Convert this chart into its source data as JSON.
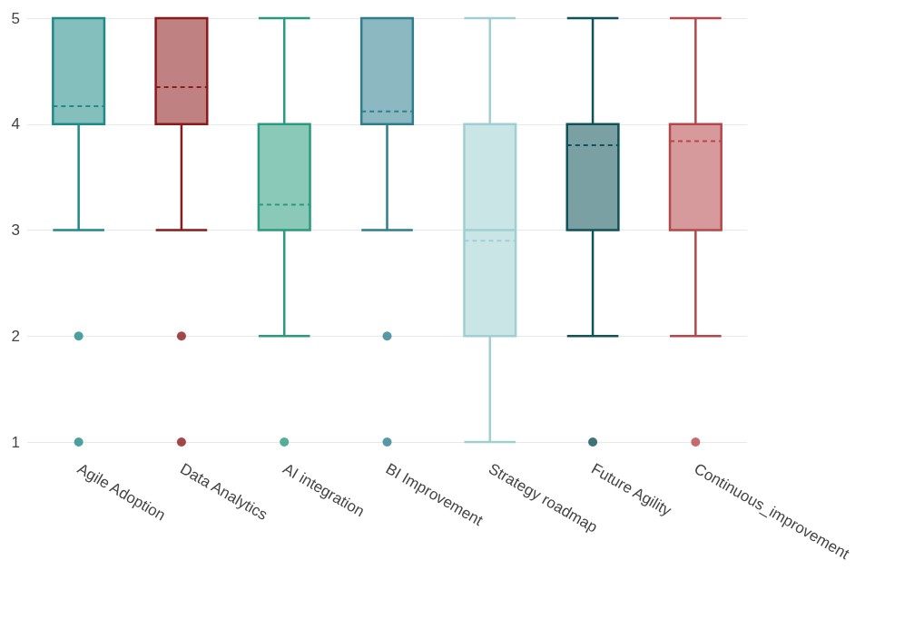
{
  "chart_data": {
    "type": "box",
    "categories": [
      "Agile Adoption",
      "Data Analytics",
      "AI integration",
      "BI Improvement",
      "Strategy roadmap",
      "Future Agility",
      "Continuous_improvement"
    ],
    "boxes": [
      {
        "low": 3,
        "q1": 4,
        "median": 4,
        "q3": 5,
        "high": 5,
        "mean": 4.17,
        "outliers": [
          2,
          1
        ]
      },
      {
        "low": 3,
        "q1": 4,
        "median": 4,
        "q3": 5,
        "high": 5,
        "mean": 4.35,
        "outliers": [
          2,
          1
        ]
      },
      {
        "low": 2,
        "q1": 3,
        "median": 3,
        "q3": 4,
        "high": 5,
        "mean": 3.24,
        "outliers": [
          1
        ]
      },
      {
        "low": 3,
        "q1": 4,
        "median": 4,
        "q3": 5,
        "high": 5,
        "mean": 4.12,
        "outliers": [
          2,
          1
        ]
      },
      {
        "low": 1,
        "q1": 2,
        "median": 3,
        "q3": 4,
        "high": 5,
        "mean": 2.9
      },
      {
        "low": 2,
        "q1": 3,
        "median": 4,
        "q3": 4,
        "high": 5,
        "mean": 3.8,
        "outliers": [
          1
        ]
      },
      {
        "low": 2,
        "q1": 3,
        "median": 4,
        "q3": 4,
        "high": 5,
        "mean": 3.84,
        "outliers": [
          1
        ]
      }
    ],
    "colors": [
      "#1f8a87",
      "#8b1a1a",
      "#2a9a7e",
      "#2e7f8e",
      "#9fcfd1",
      "#0f5257",
      "#b5474a"
    ],
    "ylim": [
      1,
      5
    ],
    "yticks": [
      1,
      2,
      3,
      4,
      5
    ],
    "grid": "y"
  }
}
